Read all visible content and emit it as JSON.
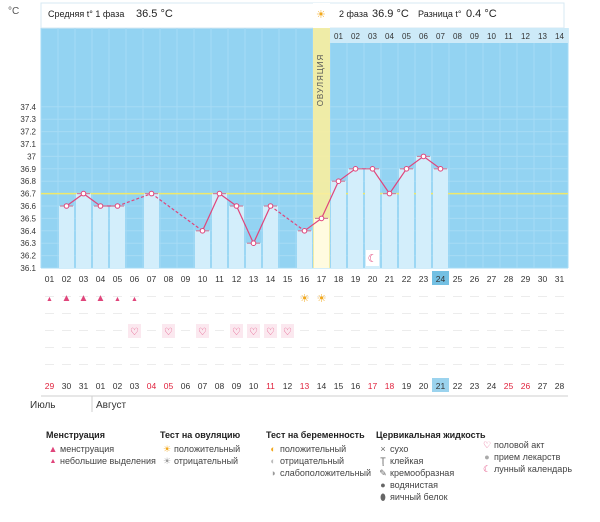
{
  "header": {
    "unit": "°C",
    "phase1_label": "Средняя t° 1 фаза",
    "phase1_value": "36.5 °C",
    "phase2_label": "2 фаза",
    "phase2_value": "36.9 °C",
    "diff_label": "Разница t°",
    "diff_value": "0.4 °C"
  },
  "ovulation_label": "ОВУЛЯЦИЯ",
  "chart_data": {
    "type": "bar",
    "y_ticks": [
      "36.1",
      "36.2",
      "36.3",
      "36.4",
      "36.5",
      "36.6",
      "36.7",
      "36.8",
      "36.9",
      "37",
      "37.1",
      "37.2",
      "37.3",
      "37.4"
    ],
    "ylim": [
      36.1,
      37.45
    ],
    "cover_line": 36.7,
    "categories": [
      "01",
      "02",
      "03",
      "04",
      "05",
      "06",
      "07",
      "08",
      "09",
      "10",
      "11",
      "12",
      "13",
      "14",
      "15",
      "16",
      "17",
      "18",
      "19",
      "20",
      "21",
      "22",
      "23",
      "24",
      "25",
      "26",
      "27",
      "28",
      "29",
      "30",
      "31"
    ],
    "values": [
      null,
      36.6,
      36.7,
      36.6,
      36.6,
      null,
      36.7,
      null,
      null,
      36.4,
      36.7,
      36.6,
      36.3,
      36.6,
      null,
      36.4,
      36.5,
      36.8,
      36.9,
      36.9,
      36.7,
      36.9,
      37.0,
      36.9,
      null,
      null,
      null,
      null,
      null,
      null,
      null
    ],
    "phase2_days": [
      "01",
      "02",
      "03",
      "04",
      "05",
      "06",
      "07",
      "08",
      "09",
      "10",
      "11",
      "12",
      "13",
      "14"
    ],
    "ovulation_day_index": 16,
    "current_day_index": 23,
    "cycle_dates": [
      "29",
      "30",
      "31",
      "01",
      "02",
      "03",
      "04",
      "05",
      "06",
      "07",
      "08",
      "09",
      "10",
      "11",
      "12",
      "13",
      "14",
      "15",
      "16",
      "17",
      "18",
      "19",
      "20",
      "21",
      "22",
      "23",
      "24",
      "25",
      "26",
      "27",
      "28"
    ],
    "red_date_indices": [
      0,
      6,
      7,
      13,
      15,
      19,
      20,
      27,
      28
    ],
    "months": [
      "Июль",
      "Август"
    ],
    "menstruation_days": [
      0,
      1,
      2,
      3,
      4,
      5
    ],
    "menstruation_big": [
      1,
      2,
      3
    ],
    "ovulation_test_positive_days": [
      15,
      16
    ],
    "intercourse_days": [
      5,
      7,
      9,
      11,
      12,
      13,
      14
    ],
    "moon_day_index": 19
  },
  "legend": {
    "menstruation": {
      "title": "Менструация",
      "items": [
        "менструация",
        "небольшие выделения"
      ]
    },
    "ovulation_test": {
      "title": "Тест на овуляцию",
      "items": [
        "положительный",
        "отрицательный"
      ]
    },
    "pregnancy_test": {
      "title": "Тест на беременность",
      "items": [
        "положительный",
        "отрицательный",
        "слабоположительный"
      ]
    },
    "cervical": {
      "title": "Цервикальная жидкость",
      "items": [
        "сухо",
        "клейкая",
        "кремообразная",
        "водянистая",
        "яичный белок"
      ]
    },
    "other": {
      "items": [
        "половой акт",
        "прием лекарств",
        "лунный календарь"
      ]
    }
  },
  "colors": {
    "bg_blue": "#93d3f2",
    "bar": "#d3eefb",
    "line": "#e0457b",
    "cover": "#f0e86a",
    "ovulation": "#f9ee9e"
  }
}
